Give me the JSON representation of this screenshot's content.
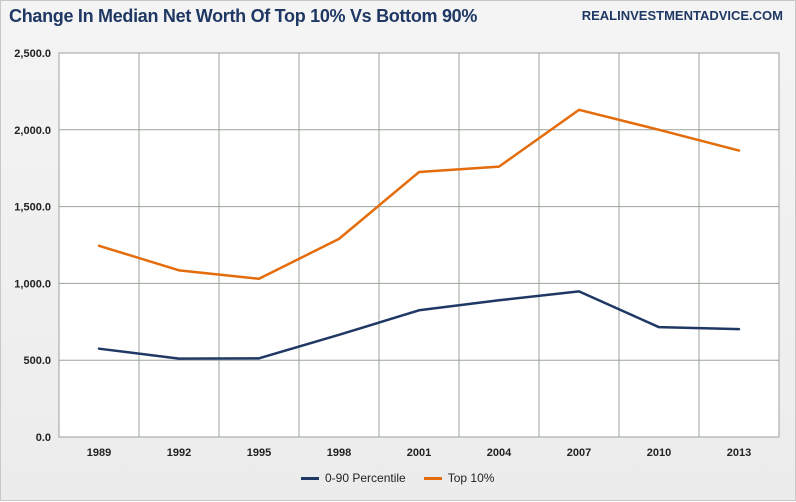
{
  "header": {
    "title": "Change In Median Net Worth Of Top 10% Vs Bottom 90%",
    "source": "REALINVESTMENTADVICE.COM"
  },
  "colors": {
    "bottom90": "#1f3864",
    "top10": "#e46c0a",
    "grid": "#9aa39a"
  },
  "chart_data": {
    "type": "line",
    "title": "Change In Median Net Worth Of Top 10% Vs Bottom 90%",
    "xlabel": "",
    "ylabel": "",
    "categories": [
      "1989",
      "1992",
      "1995",
      "1998",
      "2001",
      "2004",
      "2007",
      "2010",
      "2013"
    ],
    "ylim": [
      0,
      2500
    ],
    "y_ticks": [
      0,
      500,
      1000,
      1500,
      2000,
      2500
    ],
    "y_tick_labels": [
      "0.0",
      "500.0",
      "1,000.0",
      "1,500.0",
      "2,000.0",
      "2,500.0"
    ],
    "grid": true,
    "legend_position": "bottom",
    "series": [
      {
        "name": "0-90 Percentile",
        "values": [
          575,
          510,
          512,
          665,
          825,
          890,
          948,
          715,
          702
        ]
      },
      {
        "name": "Top 10%",
        "values": [
          1245,
          1085,
          1030,
          1290,
          1725,
          1760,
          2130,
          2000,
          1865
        ]
      }
    ]
  }
}
